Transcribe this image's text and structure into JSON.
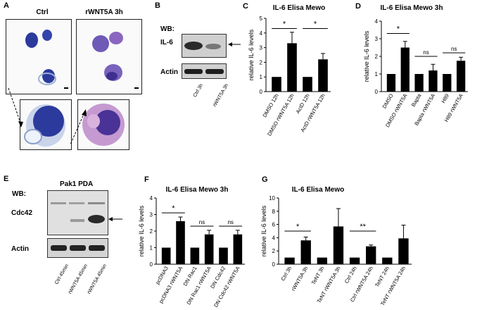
{
  "panels": {
    "A": {
      "letter": "A",
      "col_labels": [
        "Ctrl",
        "rWNT5A 3h"
      ]
    },
    "B": {
      "letter": "B",
      "wb_label": "WB:",
      "rows": [
        "IL-6",
        "Actin"
      ],
      "lanes": [
        "Ctrl 3h",
        "rWNT5A 3h"
      ]
    },
    "E": {
      "letter": "E",
      "wb_label": "WB:",
      "header": "Pak1 PDA",
      "rows": [
        "Cdc42",
        "Actin"
      ],
      "lanes": [
        "Ctrl 45min",
        "rWNT5A 45min",
        "rWNT5A 45min"
      ]
    }
  },
  "chart_data": [
    {
      "panel": "C",
      "type": "bar",
      "title": "IL-6 Elisa Mewo",
      "ylabel": "relative IL-6 levels",
      "ylim": [
        0,
        5
      ],
      "yticks": [
        "0",
        "1",
        "2",
        "3",
        "4",
        "5"
      ],
      "categories": [
        "DMSO 12h",
        "DMSO rWNT5A 12h",
        "ActD 12h",
        "ActD rWNT5A 12h"
      ],
      "values": [
        1,
        3.3,
        1,
        2.2
      ],
      "errors": [
        0,
        0.75,
        0,
        0.4
      ],
      "annotations": [
        {
          "label": "*",
          "from": 0,
          "to": 1,
          "y": 4.3
        },
        {
          "label": "*",
          "from": 2,
          "to": 3,
          "y": 4.3
        }
      ]
    },
    {
      "panel": "D",
      "type": "bar",
      "title": "IL-6 Elisa Mewo 3h",
      "ylabel": "relative IL-6 levels",
      "ylim": [
        0,
        4
      ],
      "yticks": [
        "0",
        "1",
        "2",
        "3",
        "4"
      ],
      "categories": [
        "DMSO",
        "DMSO rWNT5A",
        "Bapta",
        "Bapta rWNT5A",
        "H89",
        "H89 rWNT5A"
      ],
      "values": [
        1,
        2.5,
        1,
        1.2,
        1,
        1.75
      ],
      "errors": [
        0,
        0.35,
        0,
        0.35,
        0,
        0.2
      ],
      "annotations": [
        {
          "label": "*",
          "from": 0,
          "to": 1,
          "y": 3.3
        },
        {
          "label": "ns",
          "from": 2,
          "to": 3,
          "y": 2.0
        },
        {
          "label": "ns",
          "from": 4,
          "to": 5,
          "y": 2.2
        }
      ]
    },
    {
      "panel": "F",
      "type": "bar",
      "title": "IL-6 Elisa Mewo 3h",
      "ylabel": "relative IL-6 levels",
      "ylim": [
        0,
        4
      ],
      "yticks": [
        "0",
        "1",
        "2",
        "3",
        "4"
      ],
      "categories": [
        "pcDNA3",
        "pcDNA3 rWNT5A",
        "DN Rac1",
        "DN Rac1 rWNT5A",
        "DN Cdc42",
        "DN Cdc42 rWNT5A"
      ],
      "values": [
        1,
        2.6,
        1,
        1.8,
        1,
        1.8
      ],
      "errors": [
        0,
        0.25,
        0,
        0.25,
        0,
        0.25
      ],
      "annotations": [
        {
          "label": "*",
          "from": 0,
          "to": 1,
          "y": 3.1
        },
        {
          "label": "ns",
          "from": 2,
          "to": 3,
          "y": 2.3
        },
        {
          "label": "ns",
          "from": 4,
          "to": 5,
          "y": 2.3
        }
      ]
    },
    {
      "panel": "G",
      "type": "bar",
      "title": "IL-6 Elisa Mewo",
      "ylabel": "relative IL-6 levels",
      "ylim": [
        0,
        10
      ],
      "yticks": [
        "0",
        "2",
        "4",
        "6",
        "8",
        "10"
      ],
      "categories": [
        "Ctrl 3h",
        "rWNT5A 3h",
        "TeNT 3h",
        "TeNT rWNT5A 3h",
        "Ctrl 24h",
        "Ctrl rWNT5A 24h",
        "TeNT 24h",
        "TeNT rWNT5A 24h"
      ],
      "values": [
        1,
        3.6,
        1,
        5.7,
        1,
        2.7,
        1,
        3.9
      ],
      "errors": [
        0,
        0.5,
        0,
        2.7,
        0,
        0.2,
        0,
        2.0
      ],
      "annotations": [
        {
          "label": "*",
          "from": 0,
          "to": 1,
          "y": 5.0
        },
        {
          "label": "**",
          "from": 4,
          "to": 5,
          "y": 5.0
        }
      ]
    }
  ],
  "colors": {
    "bar": "#000000",
    "cell_stain": "#2b3a9c",
    "cell_stain_pink": "#9a4fa8",
    "blot_bg": "#d9d9d9",
    "band": "#2a2a2a"
  }
}
